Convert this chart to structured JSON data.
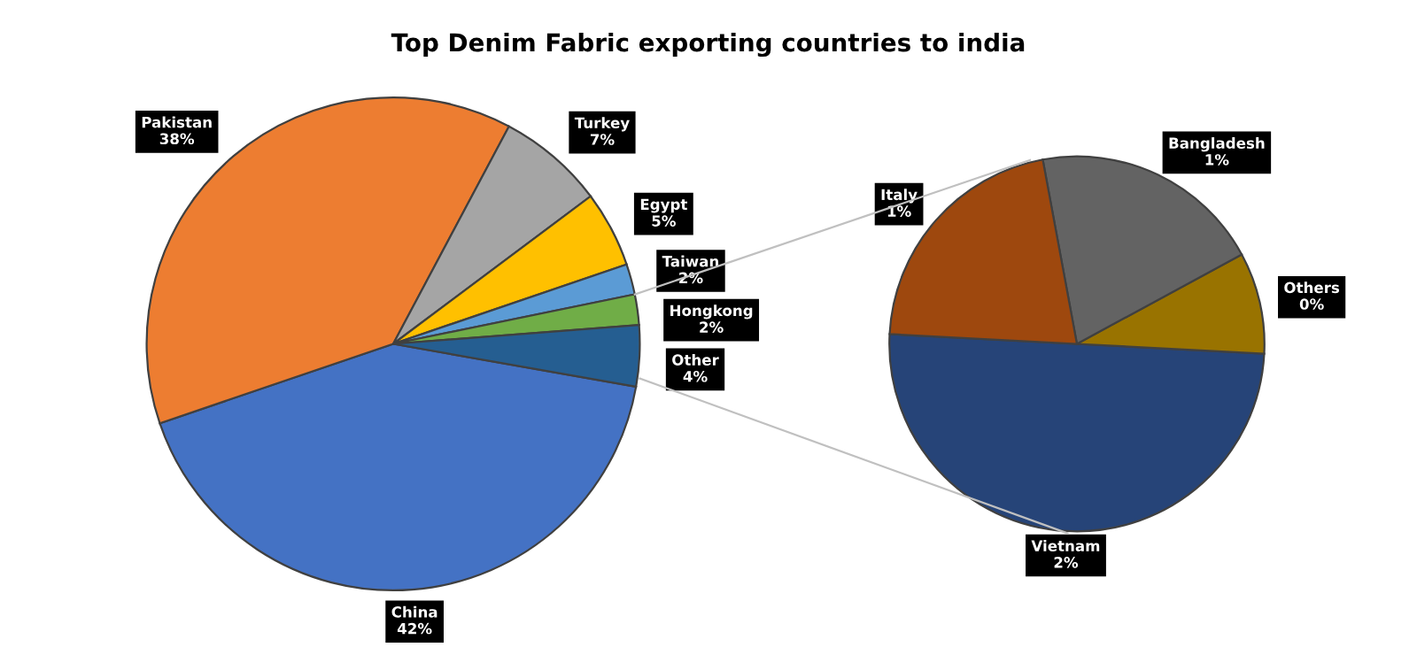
{
  "chart_data": [
    {
      "type": "pie",
      "title": "Top Denim Fabric exporting countries to india",
      "categories": [
        "China",
        "Pakistan",
        "Turkey",
        "Egypt",
        "Taiwan",
        "Hongkong",
        "Other"
      ],
      "values": [
        42,
        38,
        7,
        5,
        2,
        2,
        4
      ],
      "value_labels": [
        "42%",
        "38%",
        "7%",
        "5%",
        "2%",
        "2%",
        "4%"
      ],
      "colors": [
        "#4472c4",
        "#ed7d31",
        "#a5a5a5",
        "#ffc000",
        "#5b9bd5",
        "#70ad47",
        "#255e91"
      ]
    },
    {
      "type": "pie",
      "categories": [
        "Vietnam",
        "Others",
        "Bangladesh",
        "Italy"
      ],
      "values": [
        2.0,
        0.35,
        0.8,
        0.85
      ],
      "value_labels": [
        "2%",
        "0%",
        "1%",
        "1%"
      ],
      "colors": [
        "#264478",
        "#997300",
        "#636363",
        "#9e480e"
      ]
    }
  ]
}
